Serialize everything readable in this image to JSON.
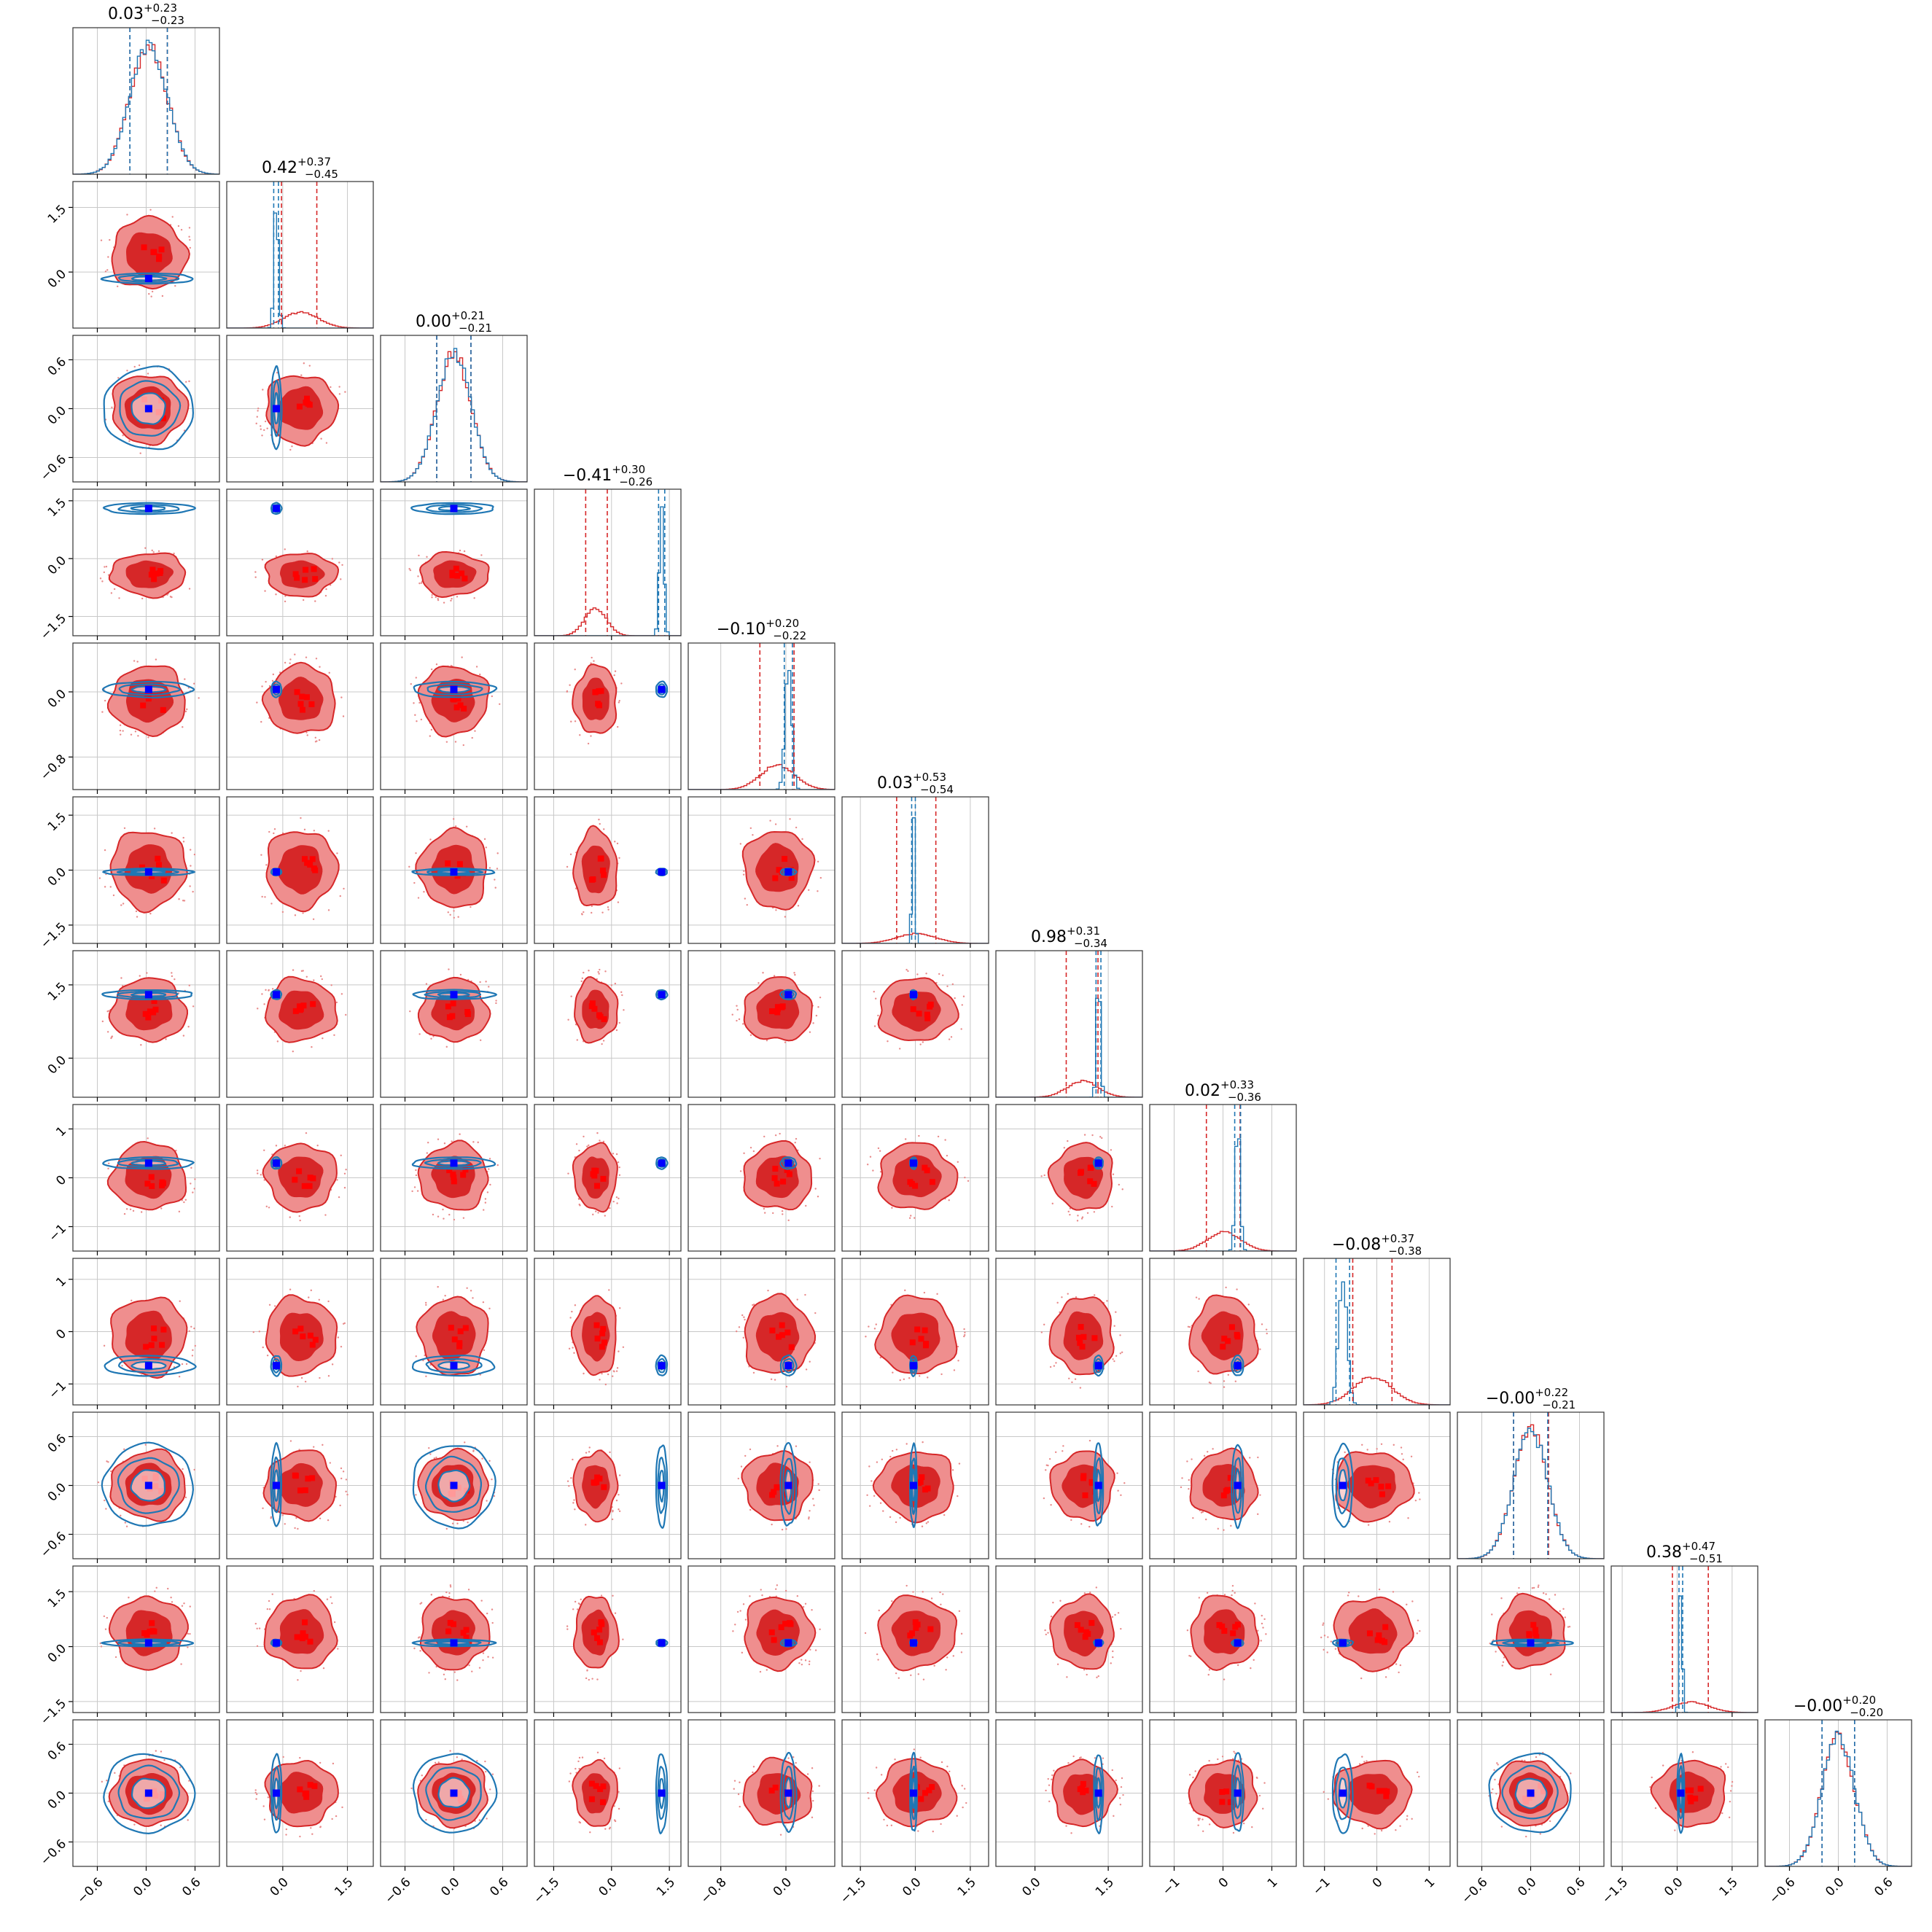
{
  "chart_data": {
    "type": "corner",
    "n_params": 12,
    "grid": true,
    "colors": {
      "posterior_a": "#d62728",
      "posterior_b": "#1f77b4",
      "truth_marker": "#0000ff",
      "median_marker": "#ff0000",
      "quantile_line_a": "#d62728",
      "quantile_line_b": "#1f77b4",
      "gridline": "#c8c8c8"
    },
    "titles": [
      {
        "median": "0.03",
        "plus": "+0.23",
        "minus": "−0.23"
      },
      {
        "median": "0.42",
        "plus": "+0.37",
        "minus": "−0.45"
      },
      {
        "median": "0.00",
        "plus": "+0.21",
        "minus": "−0.21"
      },
      {
        "median": "−0.41",
        "plus": "+0.30",
        "minus": "−0.26"
      },
      {
        "median": "−0.10",
        "plus": "+0.20",
        "minus": "−0.22"
      },
      {
        "median": "0.03",
        "plus": "+0.53",
        "minus": "−0.54"
      },
      {
        "median": "0.98",
        "plus": "+0.31",
        "minus": "−0.34"
      },
      {
        "median": "0.02",
        "plus": "+0.33",
        "minus": "−0.36"
      },
      {
        "median": "−0.08",
        "plus": "+0.37",
        "minus": "−0.38"
      },
      {
        "median": "−0.00",
        "plus": "+0.22",
        "minus": "−0.21"
      },
      {
        "median": "0.38",
        "plus": "+0.47",
        "minus": "−0.51"
      },
      {
        "median": "−0.00",
        "plus": "+0.20",
        "minus": "−0.20"
      }
    ],
    "axes": [
      {
        "range": [
          -0.9,
          0.9
        ],
        "ticks": [
          -0.6,
          0.0,
          0.6
        ],
        "tick_labels": [
          "−0.6",
          "0.0",
          "0.6"
        ]
      },
      {
        "range": [
          -1.3,
          2.1
        ],
        "ticks": [
          0.0,
          1.5
        ],
        "tick_labels": [
          "0.0",
          "1.5"
        ]
      },
      {
        "range": [
          -0.9,
          0.9
        ],
        "ticks": [
          -0.6,
          0.0,
          0.6
        ],
        "tick_labels": [
          "−0.6",
          "0.0",
          "0.6"
        ]
      },
      {
        "range": [
          -2.0,
          1.8
        ],
        "ticks": [
          -1.5,
          0.0,
          1.5
        ],
        "tick_labels": [
          "−1.5",
          "0.0",
          "1.5"
        ]
      },
      {
        "range": [
          -1.2,
          0.6
        ],
        "ticks": [
          -0.8,
          0.0
        ],
        "tick_labels": [
          "−0.8",
          "0.0"
        ]
      },
      {
        "range": [
          -2.0,
          2.0
        ],
        "ticks": [
          -1.5,
          0.0,
          1.5
        ],
        "tick_labels": [
          "−1.5",
          "0.0",
          "1.5"
        ]
      },
      {
        "range": [
          -0.8,
          2.2
        ],
        "ticks": [
          0.0,
          1.5
        ],
        "tick_labels": [
          "0.0",
          "1.5"
        ]
      },
      {
        "range": [
          -1.5,
          1.5
        ],
        "ticks": [
          -1,
          0,
          1
        ],
        "tick_labels": [
          "−1",
          "0",
          "1"
        ]
      },
      {
        "range": [
          -1.4,
          1.4
        ],
        "ticks": [
          -1,
          0,
          1
        ],
        "tick_labels": [
          "−1",
          "0",
          "1"
        ]
      },
      {
        "range": [
          -0.9,
          0.9
        ],
        "ticks": [
          -0.6,
          0.0,
          0.6
        ],
        "tick_labels": [
          "−0.6",
          "0.0",
          "0.6"
        ]
      },
      {
        "range": [
          -1.8,
          2.2
        ],
        "ticks": [
          -1.5,
          0.0,
          1.5
        ],
        "tick_labels": [
          "−1.5",
          "0.0",
          "1.5"
        ]
      },
      {
        "range": [
          -0.9,
          0.9
        ],
        "ticks": [
          -0.6,
          0.0,
          0.6
        ],
        "tick_labels": [
          "−0.6",
          "0.0",
          "0.6"
        ]
      }
    ],
    "posterior_a": {
      "center": [
        0.03,
        0.42,
        0.0,
        -0.41,
        -0.1,
        0.03,
        0.98,
        0.02,
        -0.08,
        0.0,
        0.38,
        0.0
      ],
      "sigma": [
        0.23,
        0.41,
        0.21,
        0.28,
        0.21,
        0.53,
        0.32,
        0.34,
        0.37,
        0.21,
        0.49,
        0.2
      ]
    },
    "posterior_b": {
      "center": [
        0.03,
        -0.15,
        0.0,
        1.3,
        0.03,
        -0.05,
        1.3,
        0.3,
        -0.65,
        0.0,
        0.1,
        0.0
      ],
      "sigma": [
        0.23,
        0.05,
        0.21,
        0.06,
        0.04,
        0.04,
        0.04,
        0.05,
        0.08,
        0.21,
        0.04,
        0.2
      ]
    },
    "truth": [
      0.03,
      -0.15,
      0.0,
      1.3,
      0.03,
      -0.05,
      1.3,
      0.3,
      -0.65,
      0.0,
      0.1,
      0.0
    ],
    "quantiles_b": [
      [
        -0.2,
        0.26
      ],
      [
        -0.21,
        -0.1
      ],
      [
        -0.21,
        0.21
      ],
      [
        1.22,
        1.38
      ],
      [
        -0.02,
        0.08
      ],
      [
        -0.1,
        0.0
      ],
      [
        1.25,
        1.35
      ],
      [
        0.24,
        0.36
      ],
      [
        -0.78,
        -0.52
      ],
      [
        -0.21,
        0.21
      ],
      [
        0.05,
        0.15
      ],
      [
        -0.2,
        0.2
      ]
    ]
  }
}
